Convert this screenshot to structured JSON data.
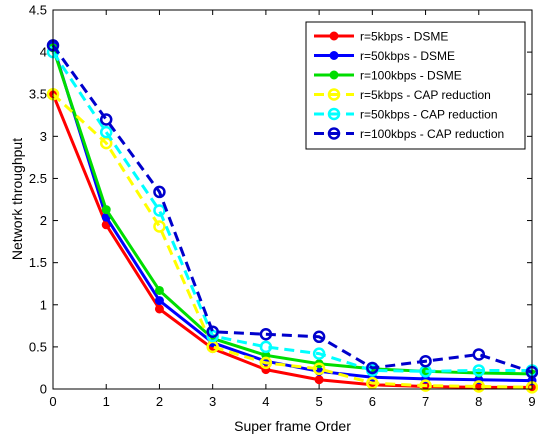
{
  "chart_data": {
    "type": "line",
    "title": "",
    "xlabel": "Super frame Order",
    "ylabel": "Network  throughput",
    "xlim": [
      0,
      9
    ],
    "ylim": [
      0,
      4.5
    ],
    "x": [
      0,
      1,
      2,
      3,
      4,
      5,
      6,
      7,
      8,
      9
    ],
    "xticks": [
      "0",
      "1",
      "2",
      "3",
      "4",
      "5",
      "6",
      "7",
      "8",
      "9"
    ],
    "yticks": [
      "0",
      "0.5",
      "1",
      "1.5",
      "2",
      "2.5",
      "3",
      "3.5",
      "4",
      "4.5"
    ],
    "grid": false,
    "legend_position": "top-right",
    "series": [
      {
        "name": "r=5kbps - DSME",
        "color": "#ff0000",
        "dash": "solid",
        "marker": "filled",
        "values": [
          3.5,
          1.95,
          0.95,
          0.48,
          0.23,
          0.11,
          0.05,
          0.03,
          0.02,
          0.02
        ]
      },
      {
        "name": "r=50kbps - DSME",
        "color": "#0000ff",
        "dash": "solid",
        "marker": "filled",
        "values": [
          4.08,
          2.04,
          1.05,
          0.55,
          0.33,
          0.21,
          0.14,
          0.12,
          0.11,
          0.1
        ]
      },
      {
        "name": "r=100kbps - DSME",
        "color": "#00dd00",
        "dash": "solid",
        "marker": "filled",
        "values": [
          4.05,
          2.13,
          1.17,
          0.6,
          0.4,
          0.3,
          0.24,
          0.21,
          0.19,
          0.18
        ]
      },
      {
        "name": "r=5kbps - CAP reduction",
        "color": "#ffff00",
        "dash": "dashed",
        "marker": "open",
        "values": [
          3.5,
          2.92,
          1.93,
          0.5,
          0.31,
          0.24,
          0.07,
          0.04,
          0.03,
          0.02
        ]
      },
      {
        "name": "r=50kbps - CAP reduction",
        "color": "#00ffff",
        "dash": "dashed",
        "marker": "open",
        "values": [
          4.0,
          3.05,
          2.12,
          0.63,
          0.5,
          0.42,
          0.22,
          0.21,
          0.22,
          0.22
        ]
      },
      {
        "name": "r=100kbps - CAP reduction",
        "color": "#0000cc",
        "dash": "dashed",
        "marker": "open",
        "values": [
          4.08,
          3.2,
          2.34,
          0.68,
          0.65,
          0.62,
          0.25,
          0.33,
          0.41,
          0.2
        ]
      }
    ]
  }
}
